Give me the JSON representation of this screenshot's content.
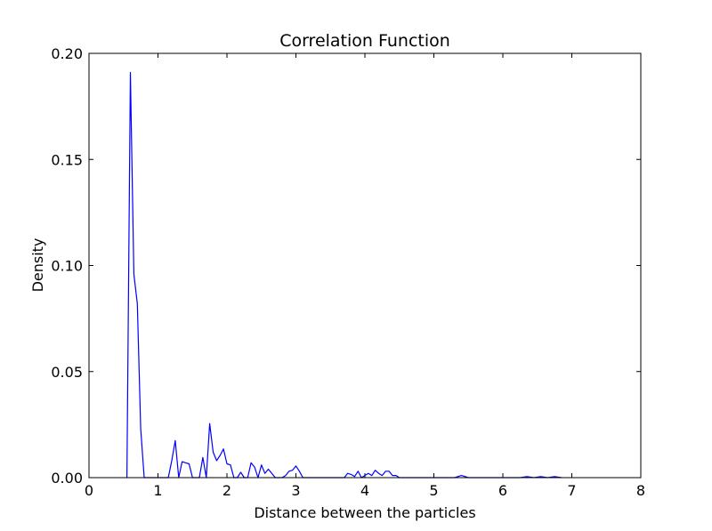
{
  "chart_data": {
    "type": "line",
    "title": "Correlation Function",
    "xlabel": "Distance between the particles",
    "ylabel": "Density",
    "xlim": [
      0,
      8
    ],
    "ylim": [
      0,
      0.2
    ],
    "xticks": [
      "0",
      "1",
      "2",
      "3",
      "4",
      "5",
      "6",
      "7",
      "8"
    ],
    "yticks": [
      "0.00",
      "0.05",
      "0.10",
      "0.15",
      "0.20"
    ],
    "grid": false,
    "line_color": "#0000ff",
    "series": [
      {
        "x": [
          0.55,
          0.6,
          0.65,
          0.7,
          0.75,
          0.8,
          0.85,
          0.9,
          0.95,
          1.0,
          1.05,
          1.1,
          1.15,
          1.2,
          1.25,
          1.3,
          1.35,
          1.4,
          1.45,
          1.5,
          1.55,
          1.6,
          1.65,
          1.7,
          1.75,
          1.8,
          1.85,
          1.9,
          1.95,
          2.0,
          2.05,
          2.1,
          2.15,
          2.2,
          2.25,
          2.3,
          2.35,
          2.4,
          2.45,
          2.5,
          2.55,
          2.6,
          2.65,
          2.7,
          2.75,
          2.8,
          2.85,
          2.9,
          2.95,
          3.0,
          3.05,
          3.1,
          3.15,
          3.2,
          3.25,
          3.3,
          3.7,
          3.75,
          3.8,
          3.85,
          3.9,
          3.95,
          4.0,
          4.05,
          4.1,
          4.15,
          4.2,
          4.25,
          4.3,
          4.35,
          4.4,
          4.45,
          4.5,
          4.55,
          4.6,
          5.3,
          5.4,
          5.5,
          6.25,
          6.35,
          6.45,
          6.55,
          6.65,
          6.75,
          6.85
        ],
        "y": [
          0.0,
          0.191,
          0.096,
          0.082,
          0.023,
          0.0,
          0.0,
          0.0,
          0.0,
          0.0,
          0.0,
          0.0,
          0.0,
          0.008,
          0.0175,
          0.0,
          0.0075,
          0.007,
          0.0065,
          0.0,
          0.0,
          0.0,
          0.0095,
          0.0,
          0.0255,
          0.012,
          0.008,
          0.0105,
          0.0135,
          0.0065,
          0.006,
          0.0,
          0.0,
          0.0025,
          0.0,
          0.0,
          0.007,
          0.005,
          0.0,
          0.006,
          0.002,
          0.004,
          0.002,
          0.0,
          0.0,
          0.0,
          0.001,
          0.003,
          0.0035,
          0.0055,
          0.003,
          0.0,
          0.0,
          0.0,
          0.0,
          0.0,
          0.0,
          0.002,
          0.0015,
          0.0005,
          0.003,
          0.0,
          0.001,
          0.002,
          0.001,
          0.0035,
          0.002,
          0.001,
          0.003,
          0.003,
          0.001,
          0.001,
          0.0,
          0.0,
          0.0,
          0.0,
          0.001,
          0.0,
          0.0,
          0.0005,
          0.0,
          0.0005,
          0.0,
          0.0005,
          0.0
        ]
      }
    ]
  }
}
